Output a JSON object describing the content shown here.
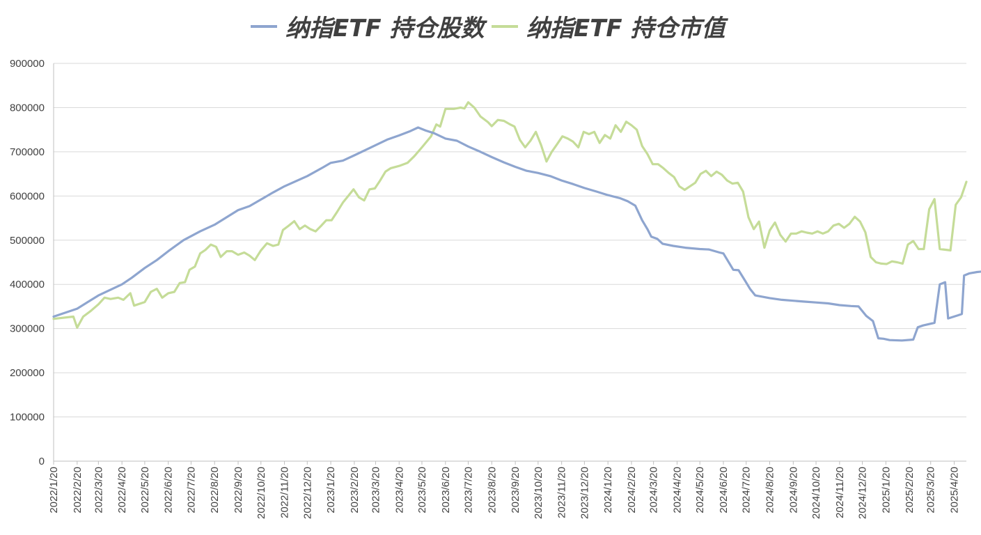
{
  "chart_data": {
    "type": "line",
    "title": "",
    "xlabel": "",
    "ylabel": "",
    "legend_position": "top",
    "grid": true,
    "ylim": [
      0,
      900000
    ],
    "yticks": [
      0,
      100000,
      200000,
      300000,
      400000,
      500000,
      600000,
      700000,
      800000,
      900000
    ],
    "x_ticks": [
      "2022/1/20",
      "2022/2/20",
      "2022/3/20",
      "2022/4/20",
      "2022/5/20",
      "2022/6/20",
      "2022/7/20",
      "2022/8/20",
      "2022/9/20",
      "2022/10/20",
      "2022/11/20",
      "2022/12/20",
      "2023/1/20",
      "2023/2/20",
      "2023/3/20",
      "2023/4/20",
      "2023/5/20",
      "2023/6/20",
      "2023/7/20",
      "2023/8/20",
      "2023/9/20",
      "2023/10/20",
      "2023/11/20",
      "2023/12/20",
      "2024/1/20",
      "2024/2/20",
      "2024/3/20",
      "2024/4/20",
      "2024/5/20",
      "2024/6/20",
      "2024/7/20",
      "2024/8/20",
      "2024/9/20",
      "2024/10/20",
      "2024/11/20",
      "2024/12/20",
      "2025/1/20",
      "2025/2/20",
      "2025/3/20",
      "2025/4/20"
    ],
    "x_range": [
      "2022/1/20",
      "2025/5/6"
    ],
    "series": [
      {
        "name": "纳指ETF 持仓股数",
        "color": "#8ea5cf",
        "points": [
          [
            "2022/1/20",
            327000
          ],
          [
            "2022/2/20",
            345000
          ],
          [
            "2022/3/20",
            375000
          ],
          [
            "2022/4/20",
            400000
          ],
          [
            "2022/5/3",
            415000
          ],
          [
            "2022/5/20",
            437000
          ],
          [
            "2022/6/5",
            455000
          ],
          [
            "2022/6/20",
            475000
          ],
          [
            "2022/7/10",
            500000
          ],
          [
            "2022/8/1",
            520000
          ],
          [
            "2022/8/20",
            535000
          ],
          [
            "2022/9/20",
            568000
          ],
          [
            "2022/10/5",
            577000
          ],
          [
            "2022/10/20",
            592000
          ],
          [
            "2022/11/5",
            608000
          ],
          [
            "2022/11/20",
            622000
          ],
          [
            "2022/12/20",
            645000
          ],
          [
            "2023/1/10",
            665000
          ],
          [
            "2023/1/20",
            675000
          ],
          [
            "2023/2/5",
            680000
          ],
          [
            "2023/2/20",
            692000
          ],
          [
            "2023/3/20",
            715000
          ],
          [
            "2023/4/5",
            728000
          ],
          [
            "2023/4/20",
            737000
          ],
          [
            "2023/5/5",
            747000
          ],
          [
            "2023/5/15",
            755000
          ],
          [
            "2023/5/25",
            748000
          ],
          [
            "2023/6/5",
            742000
          ],
          [
            "2023/6/20",
            730000
          ],
          [
            "2023/7/5",
            725000
          ],
          [
            "2023/7/20",
            712000
          ],
          [
            "2023/8/5",
            700000
          ],
          [
            "2023/8/20",
            688000
          ],
          [
            "2023/9/5",
            676000
          ],
          [
            "2023/9/20",
            666000
          ],
          [
            "2023/10/5",
            657000
          ],
          [
            "2023/10/20",
            652000
          ],
          [
            "2023/11/5",
            645000
          ],
          [
            "2023/11/20",
            635000
          ],
          [
            "2023/12/5",
            627000
          ],
          [
            "2023/12/20",
            618000
          ],
          [
            "2024/1/5",
            610000
          ],
          [
            "2024/1/20",
            602000
          ],
          [
            "2024/2/5",
            595000
          ],
          [
            "2024/2/15",
            588000
          ],
          [
            "2024/2/25",
            578000
          ],
          [
            "2024/3/5",
            545000
          ],
          [
            "2024/3/12",
            525000
          ],
          [
            "2024/3/17",
            508000
          ],
          [
            "2024/3/25",
            503000
          ],
          [
            "2024/4/1",
            492000
          ],
          [
            "2024/4/15",
            487000
          ],
          [
            "2024/5/1",
            483000
          ],
          [
            "2024/5/20",
            480000
          ],
          [
            "2024/6/1",
            479000
          ],
          [
            "2024/6/15",
            472000
          ],
          [
            "2024/6/20",
            470000
          ],
          [
            "2024/7/3",
            433000
          ],
          [
            "2024/7/10",
            432000
          ],
          [
            "2024/7/18",
            410000
          ],
          [
            "2024/7/25",
            390000
          ],
          [
            "2024/8/1",
            375000
          ],
          [
            "2024/8/20",
            369000
          ],
          [
            "2024/9/5",
            365000
          ],
          [
            "2024/9/20",
            363000
          ],
          [
            "2024/10/5",
            361000
          ],
          [
            "2024/10/20",
            359000
          ],
          [
            "2024/11/5",
            357000
          ],
          [
            "2024/11/20",
            353000
          ],
          [
            "2024/12/5",
            351000
          ],
          [
            "2024/12/15",
            350000
          ],
          [
            "2024/12/25",
            329000
          ],
          [
            "2025/1/3",
            317000
          ],
          [
            "2025/1/10",
            278000
          ],
          [
            "2025/1/17",
            277000
          ],
          [
            "2025/1/25",
            274000
          ],
          [
            "2025/2/10",
            273000
          ],
          [
            "2025/2/25",
            275000
          ],
          [
            "2025/3/3",
            303000
          ],
          [
            "2025/3/10",
            307000
          ],
          [
            "2025/3/25",
            313000
          ],
          [
            "2025/4/1",
            400000
          ],
          [
            "2025/4/8",
            405000
          ],
          [
            "2025/4/12",
            323000
          ],
          [
            "2025/4/25",
            330000
          ],
          [
            "2025/4/30",
            333000
          ],
          [
            "2025/5/3",
            420000
          ],
          [
            "2025/5/10",
            425000
          ],
          [
            "2025/5/20",
            428000
          ],
          [
            "2025/6/1",
            430000
          ]
        ]
      },
      {
        "name": "纳指ETF 持仓市值",
        "color": "#c5dc98",
        "points": [
          [
            "2022/1/20",
            322000
          ],
          [
            "2022/2/15",
            327000
          ],
          [
            "2022/2/20",
            302000
          ],
          [
            "2022/2/28",
            327000
          ],
          [
            "2022/3/10",
            340000
          ],
          [
            "2022/3/20",
            355000
          ],
          [
            "2022/3/28",
            370000
          ],
          [
            "2022/4/5",
            367000
          ],
          [
            "2022/4/15",
            370000
          ],
          [
            "2022/4/22",
            365000
          ],
          [
            "2022/5/1",
            380000
          ],
          [
            "2022/5/6",
            352000
          ],
          [
            "2022/5/20",
            360000
          ],
          [
            "2022/5/28",
            383000
          ],
          [
            "2022/6/5",
            390000
          ],
          [
            "2022/6/12",
            370000
          ],
          [
            "2022/6/20",
            380000
          ],
          [
            "2022/6/28",
            383000
          ],
          [
            "2022/7/5",
            403000
          ],
          [
            "2022/7/12",
            405000
          ],
          [
            "2022/7/18",
            433000
          ],
          [
            "2022/7/25",
            440000
          ],
          [
            "2022/8/1",
            470000
          ],
          [
            "2022/8/8",
            478000
          ],
          [
            "2022/8/15",
            490000
          ],
          [
            "2022/8/22",
            485000
          ],
          [
            "2022/8/28",
            462000
          ],
          [
            "2022/9/5",
            475000
          ],
          [
            "2022/9/12",
            475000
          ],
          [
            "2022/9/20",
            467000
          ],
          [
            "2022/9/28",
            472000
          ],
          [
            "2022/10/5",
            465000
          ],
          [
            "2022/10/12",
            455000
          ],
          [
            "2022/10/20",
            477000
          ],
          [
            "2022/10/28",
            493000
          ],
          [
            "2022/11/5",
            487000
          ],
          [
            "2022/11/12",
            490000
          ],
          [
            "2022/11/18",
            523000
          ],
          [
            "2022/11/25",
            532000
          ],
          [
            "2022/12/3",
            543000
          ],
          [
            "2022/12/10",
            525000
          ],
          [
            "2022/12/17",
            533000
          ],
          [
            "2022/12/24",
            525000
          ],
          [
            "2022/12/31",
            520000
          ],
          [
            "2023/1/7",
            532000
          ],
          [
            "2023/1/14",
            545000
          ],
          [
            "2023/1/21",
            545000
          ],
          [
            "2023/1/28",
            563000
          ],
          [
            "2023/2/5",
            585000
          ],
          [
            "2023/2/12",
            600000
          ],
          [
            "2023/2/19",
            615000
          ],
          [
            "2023/2/26",
            597000
          ],
          [
            "2023/3/5",
            590000
          ],
          [
            "2023/3/12",
            615000
          ],
          [
            "2023/3/19",
            617000
          ],
          [
            "2023/3/26",
            635000
          ],
          [
            "2023/4/2",
            655000
          ],
          [
            "2023/4/9",
            663000
          ],
          [
            "2023/4/20",
            668000
          ],
          [
            "2023/5/1",
            675000
          ],
          [
            "2023/5/10",
            690000
          ],
          [
            "2023/5/20",
            710000
          ],
          [
            "2023/6/1",
            735000
          ],
          [
            "2023/6/8",
            762000
          ],
          [
            "2023/6/13",
            757000
          ],
          [
            "2023/6/20",
            797000
          ],
          [
            "2023/7/1",
            797000
          ],
          [
            "2023/7/10",
            800000
          ],
          [
            "2023/7/15",
            798000
          ],
          [
            "2023/7/20",
            812000
          ],
          [
            "2023/7/28",
            800000
          ],
          [
            "2023/8/5",
            780000
          ],
          [
            "2023/8/15",
            767000
          ],
          [
            "2023/8/20",
            758000
          ],
          [
            "2023/8/28",
            772000
          ],
          [
            "2023/9/5",
            770000
          ],
          [
            "2023/9/12",
            763000
          ],
          [
            "2023/9/19",
            757000
          ],
          [
            "2023/9/26",
            727000
          ],
          [
            "2023/10/3",
            710000
          ],
          [
            "2023/10/10",
            725000
          ],
          [
            "2023/10/17",
            745000
          ],
          [
            "2023/10/24",
            715000
          ],
          [
            "2023/10/31",
            678000
          ],
          [
            "2023/11/7",
            700000
          ],
          [
            "2023/11/14",
            717000
          ],
          [
            "2023/11/21",
            735000
          ],
          [
            "2023/11/28",
            730000
          ],
          [
            "2023/12/5",
            723000
          ],
          [
            "2023/12/12",
            710000
          ],
          [
            "2023/12/19",
            745000
          ],
          [
            "2023/12/26",
            740000
          ],
          [
            "2024/1/2",
            745000
          ],
          [
            "2024/1/9",
            720000
          ],
          [
            "2024/1/16",
            738000
          ],
          [
            "2024/1/23",
            730000
          ],
          [
            "2024/1/30",
            760000
          ],
          [
            "2024/2/6",
            745000
          ],
          [
            "2024/2/13",
            768000
          ],
          [
            "2024/2/20",
            760000
          ],
          [
            "2024/2/27",
            750000
          ],
          [
            "2024/3/5",
            713000
          ],
          [
            "2024/3/12",
            695000
          ],
          [
            "2024/3/19",
            672000
          ],
          [
            "2024/3/26",
            672000
          ],
          [
            "2024/4/2",
            663000
          ],
          [
            "2024/4/9",
            652000
          ],
          [
            "2024/4/16",
            643000
          ],
          [
            "2024/4/23",
            622000
          ],
          [
            "2024/4/30",
            614000
          ],
          [
            "2024/5/7",
            622000
          ],
          [
            "2024/5/14",
            630000
          ],
          [
            "2024/5/21",
            650000
          ],
          [
            "2024/5/28",
            657000
          ],
          [
            "2024/6/4",
            645000
          ],
          [
            "2024/6/11",
            655000
          ],
          [
            "2024/6/18",
            648000
          ],
          [
            "2024/6/25",
            635000
          ],
          [
            "2024/7/2",
            628000
          ],
          [
            "2024/7/9",
            630000
          ],
          [
            "2024/7/16",
            610000
          ],
          [
            "2024/7/23",
            552000
          ],
          [
            "2024/7/30",
            525000
          ],
          [
            "2024/8/6",
            542000
          ],
          [
            "2024/8/13",
            483000
          ],
          [
            "2024/8/20",
            522000
          ],
          [
            "2024/8/27",
            540000
          ],
          [
            "2024/9/3",
            512000
          ],
          [
            "2024/9/10",
            497000
          ],
          [
            "2024/9/17",
            515000
          ],
          [
            "2024/9/24",
            515000
          ],
          [
            "2024/10/1",
            520000
          ],
          [
            "2024/10/8",
            517000
          ],
          [
            "2024/10/15",
            515000
          ],
          [
            "2024/10/22",
            520000
          ],
          [
            "2024/10/29",
            515000
          ],
          [
            "2024/11/5",
            520000
          ],
          [
            "2024/11/12",
            533000
          ],
          [
            "2024/11/19",
            537000
          ],
          [
            "2024/11/26",
            528000
          ],
          [
            "2024/12/3",
            537000
          ],
          [
            "2024/12/10",
            553000
          ],
          [
            "2024/12/17",
            542000
          ],
          [
            "2024/12/24",
            518000
          ],
          [
            "2024/12/31",
            462000
          ],
          [
            "2025/1/7",
            450000
          ],
          [
            "2025/1/14",
            447000
          ],
          [
            "2025/1/21",
            446000
          ],
          [
            "2025/1/28",
            452000
          ],
          [
            "2025/2/4",
            450000
          ],
          [
            "2025/2/11",
            447000
          ],
          [
            "2025/2/18",
            490000
          ],
          [
            "2025/2/25",
            498000
          ],
          [
            "2025/3/4",
            480000
          ],
          [
            "2025/3/11",
            480000
          ],
          [
            "2025/3/18",
            570000
          ],
          [
            "2025/3/25",
            593000
          ],
          [
            "2025/4/1",
            480000
          ],
          [
            "2025/4/15",
            477000
          ],
          [
            "2025/4/22",
            580000
          ],
          [
            "2025/4/29",
            597000
          ],
          [
            "2025/5/6",
            632000
          ]
        ]
      }
    ]
  }
}
